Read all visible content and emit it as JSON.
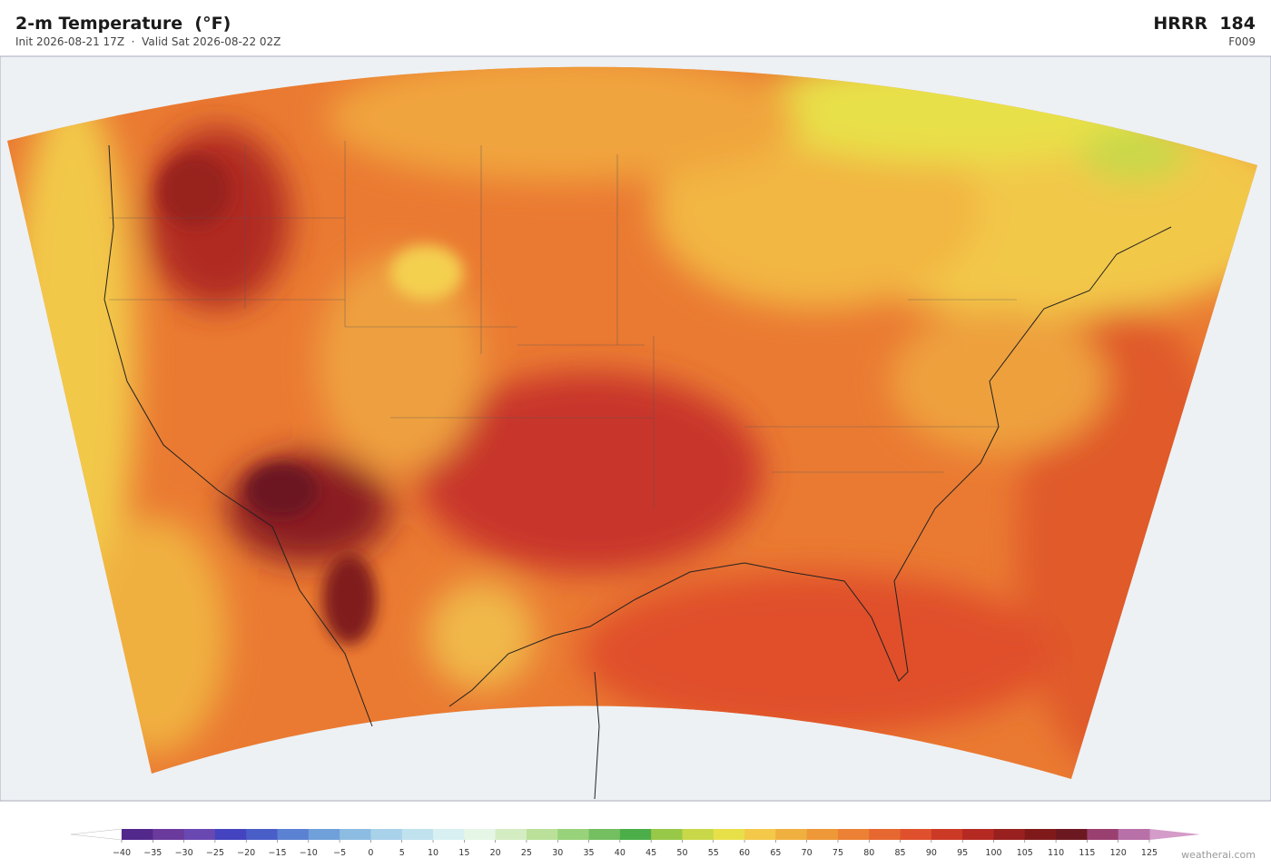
{
  "header": {
    "title": "2-m Temperature  (°F)",
    "subtitle": "Init 2026-08-21 17Z  ·  Valid Sat 2026-08-22 02Z",
    "model": "HRRR  184",
    "forecast_hour": "F009"
  },
  "colorbar": {
    "range": [
      -40,
      125
    ],
    "ticks": [
      {
        "value": -40,
        "label": "−40"
      },
      {
        "value": -35,
        "label": "−35"
      },
      {
        "value": -30,
        "label": "−30"
      },
      {
        "value": -25,
        "label": "−25"
      },
      {
        "value": -20,
        "label": "−20"
      },
      {
        "value": -15,
        "label": "−15"
      },
      {
        "value": -10,
        "label": "−10"
      },
      {
        "value": -5,
        "label": "−5"
      },
      0,
      5,
      10,
      15,
      20,
      25,
      30,
      35,
      40,
      45,
      50,
      55,
      60,
      65,
      70,
      75,
      80,
      85,
      90,
      95,
      100,
      105,
      110,
      115,
      120,
      125
    ],
    "colors": [
      "#52288c",
      "#6a3a9c",
      "#6a48b2",
      "#4444c0",
      "#4a5ec8",
      "#5b82d2",
      "#70a0da",
      "#8cbce2",
      "#a8d2ea",
      "#c0e2ee",
      "#d8f0f2",
      "#e6f6e6",
      "#d4ecc2",
      "#bae09a",
      "#98d27a",
      "#74c060",
      "#4cae48",
      "#98c848",
      "#c8d848",
      "#e8e048",
      "#f4c848",
      "#f0b040",
      "#ee9838",
      "#ec8034",
      "#e66830",
      "#e0502c",
      "#cc3a26",
      "#b42a22",
      "#98201e",
      "#801a1a",
      "#6c1820",
      "#9a4070",
      "#b870a8"
    ],
    "under_color": "#ffffff",
    "over_color": "#d49cc8"
  },
  "footer": {
    "credit": "weatherai.com"
  }
}
